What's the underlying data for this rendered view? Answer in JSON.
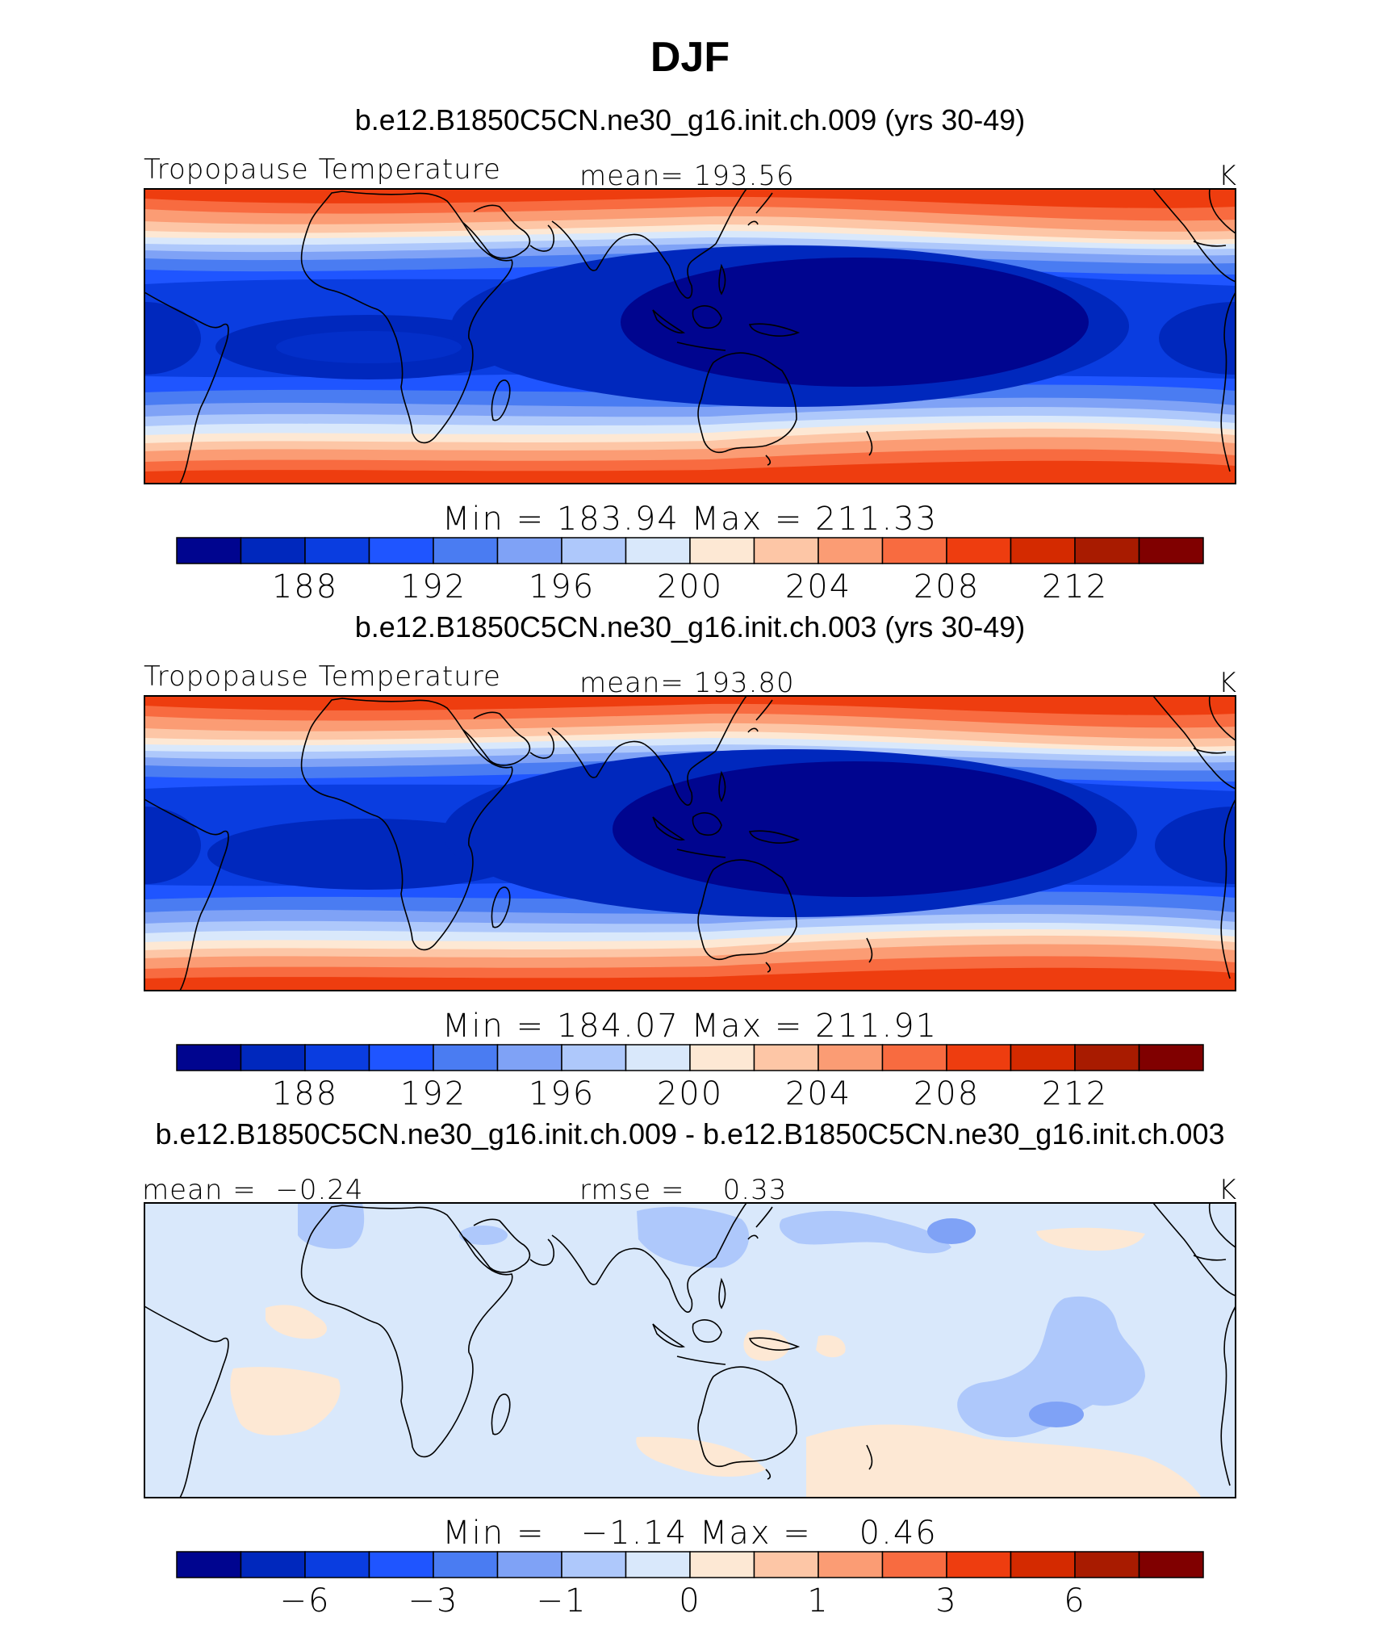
{
  "title": "DJF",
  "units": "K",
  "chart_data": [
    {
      "type": "heatmap",
      "case": "b.e12.B1850C5CN.ne30_g16.init.ch.009 (yrs 30-49)",
      "variable": "Tropopause Temperature",
      "mean_text": "mean= 193.56",
      "units": "K",
      "min": 183.94,
      "max": 211.33,
      "minmax_text": "Min = 183.94 Max = 211.33",
      "ticks": [
        "188",
        "192",
        "196",
        "200",
        "204",
        "208",
        "212"
      ],
      "levels": [
        186,
        188,
        190,
        192,
        194,
        196,
        198,
        200,
        202,
        204,
        206,
        208,
        210,
        212
      ],
      "colors": [
        "#00058f",
        "#0028bd",
        "#0a3de0",
        "#1f55ff",
        "#4a7cf2",
        "#7fa2f6",
        "#aec8fb",
        "#d9e8fb",
        "#fde8d4",
        "#fdc6a6",
        "#fb9c74",
        "#f86b40",
        "#ee3d0f",
        "#d42a00",
        "#a81b00",
        "#800000"
      ]
    },
    {
      "type": "heatmap",
      "case": "b.e12.B1850C5CN.ne30_g16.init.ch.003 (yrs 30-49)",
      "variable": "Tropopause Temperature",
      "mean_text": "mean= 193.80",
      "units": "K",
      "min": 184.07,
      "max": 211.91,
      "minmax_text": "Min = 184.07 Max = 211.91",
      "ticks": [
        "188",
        "192",
        "196",
        "200",
        "204",
        "208",
        "212"
      ],
      "levels": [
        186,
        188,
        190,
        192,
        194,
        196,
        198,
        200,
        202,
        204,
        206,
        208,
        210,
        212
      ],
      "colors": [
        "#00058f",
        "#0028bd",
        "#0a3de0",
        "#1f55ff",
        "#4a7cf2",
        "#7fa2f6",
        "#aec8fb",
        "#d9e8fb",
        "#fde8d4",
        "#fdc6a6",
        "#fb9c74",
        "#f86b40",
        "#ee3d0f",
        "#d42a00",
        "#a81b00",
        "#800000"
      ]
    },
    {
      "type": "heatmap",
      "case": "b.e12.B1850C5CN.ne30_g16.init.ch.009 - b.e12.B1850C5CN.ne30_g16.init.ch.003",
      "mean_text": "mean =  −0.24",
      "rmse_text": "rmse =    0.33",
      "units": "K",
      "min": -1.14,
      "max": 0.46,
      "minmax_text": "Min =   −1.14 Max =    0.46",
      "ticks": [
        "−6",
        "−3",
        "−1",
        "0",
        "1",
        "3",
        "6"
      ],
      "levels": [
        -8,
        -6,
        -4,
        -3,
        -2,
        -1,
        -0.5,
        0,
        0.5,
        1,
        2,
        3,
        4,
        6,
        8
      ],
      "colors": [
        "#00058f",
        "#0028bd",
        "#0a3de0",
        "#1f55ff",
        "#4a7cf2",
        "#7fa2f6",
        "#aec8fb",
        "#d9e8fb",
        "#fde8d4",
        "#fdc6a6",
        "#fb9c74",
        "#f86b40",
        "#ee3d0f",
        "#d42a00",
        "#a81b00",
        "#800000"
      ]
    }
  ]
}
